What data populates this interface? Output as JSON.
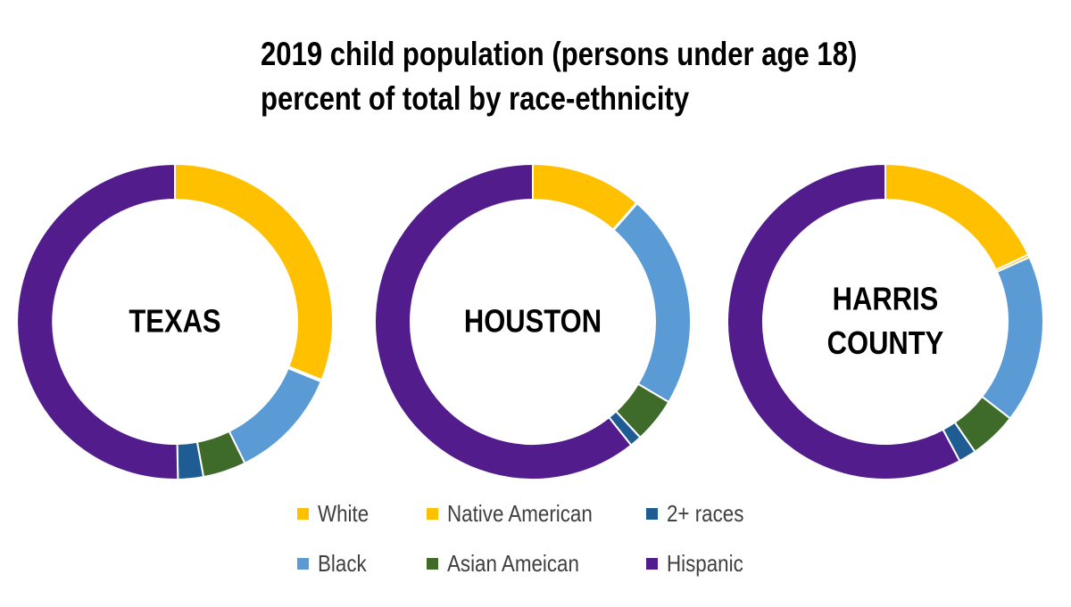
{
  "title": {
    "line1": "2019 child population (persons under age 18)",
    "line2": "percent of total by race-ethnicity"
  },
  "colors": {
    "White": "#FFC000",
    "Native American": "#FFC000",
    "2+ races": "#1F5C94",
    "Black": "#5B9BD5",
    "Asian Ameican": "#3F6B2A",
    "Hispanic": "#521C8C"
  },
  "legend": [
    {
      "label": "White"
    },
    {
      "label": "Native American"
    },
    {
      "label": "2+ races"
    },
    {
      "label": "Black"
    },
    {
      "label": "Asian Ameican"
    },
    {
      "label": "Hispanic"
    }
  ],
  "chart_data": [
    {
      "type": "pie",
      "title": "TEXAS",
      "title_lines": [
        "TEXAS"
      ],
      "categories": [
        "White",
        "Native American",
        "Black",
        "Asian Ameican",
        "2+ races",
        "Hispanic"
      ],
      "values": [
        31.0,
        0.2,
        11.5,
        4.4,
        2.6,
        50.3
      ]
    },
    {
      "type": "pie",
      "title": "HOUSTON",
      "title_lines": [
        "HOUSTON"
      ],
      "categories": [
        "White",
        "Native American",
        "Black",
        "Asian Ameican",
        "2+ races",
        "Hispanic"
      ],
      "values": [
        11.4,
        0.1,
        22.0,
        4.6,
        1.2,
        60.7
      ]
    },
    {
      "type": "pie",
      "title": "HARRIS COUNTY",
      "title_lines": [
        "HARRIS",
        "COUNTY"
      ],
      "categories": [
        "White",
        "Native American",
        "Black",
        "Asian Ameican",
        "2+ races",
        "Hispanic"
      ],
      "values": [
        18.0,
        0.3,
        17.2,
        4.9,
        1.8,
        57.8
      ]
    }
  ]
}
